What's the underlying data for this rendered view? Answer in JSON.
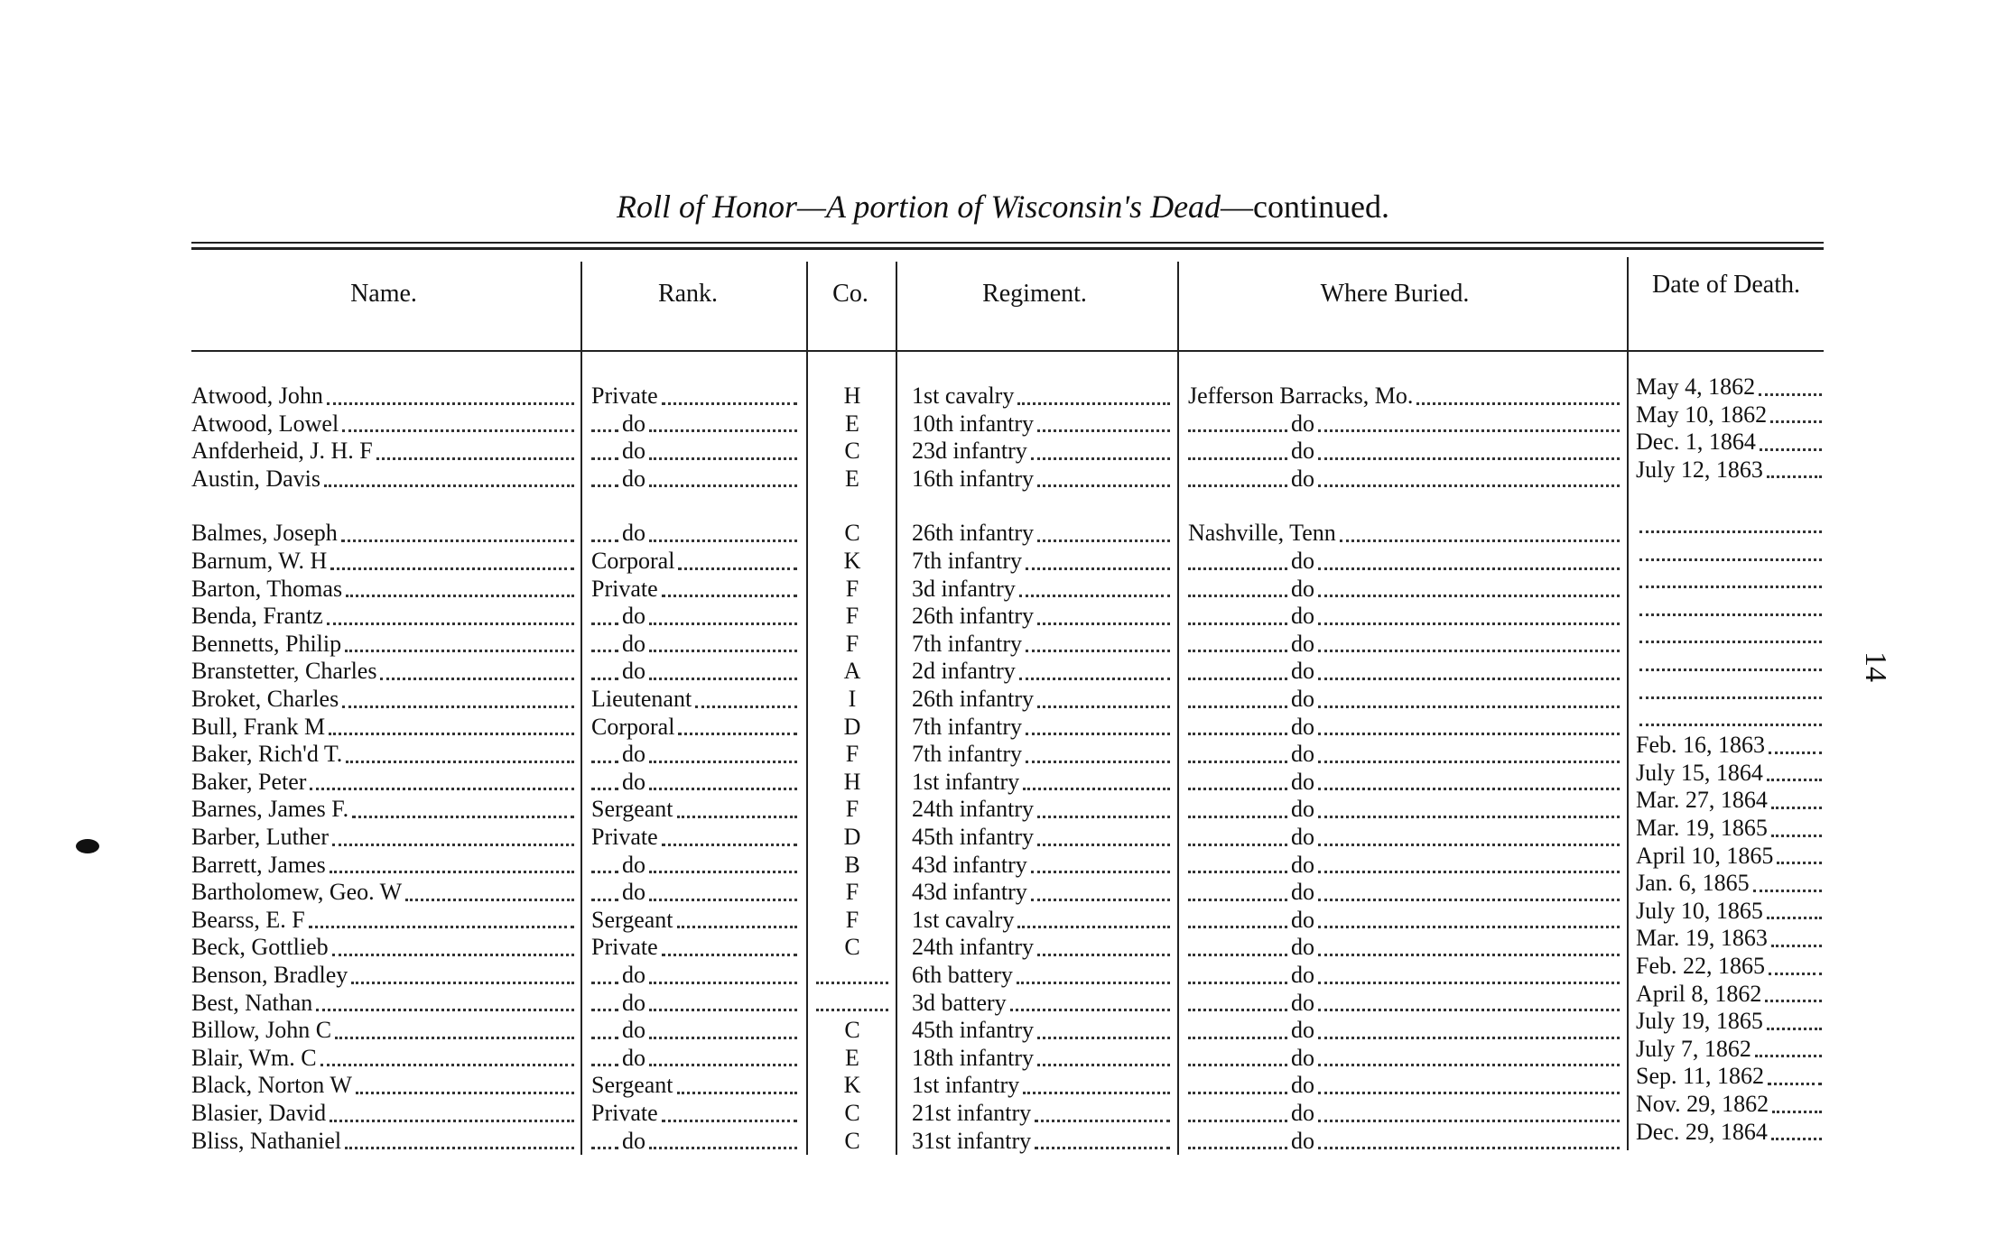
{
  "page": {
    "title": {
      "main": "Roll of Honor—A portion of Wisconsin's Dead",
      "suffix": "—continued."
    },
    "page_number": "14",
    "table": {
      "headers": [
        "Name.",
        "Rank.",
        "Co.",
        "Regiment.",
        "Where Buried.",
        "Date of Death."
      ],
      "rows": [
        [
          "Atwood, John",
          "Private",
          "H",
          "1st cavalry",
          "Jefferson Barracks, Mo.",
          "May 4, 1862"
        ],
        [
          "Atwood, Lowel",
          "do",
          "E",
          "10th infantry",
          "do",
          "May 10, 1862"
        ],
        [
          "Anfderheid, J. H. F",
          "do",
          "C",
          "23d infantry",
          "do",
          "Dec. 1, 1864"
        ],
        [
          "Austin, Davis",
          "do",
          "E",
          "16th infantry",
          "do",
          "July 12, 1863"
        ],
        [
          "Balmes, Joseph",
          "do",
          "C",
          "26th infantry",
          "Nashville, Tenn",
          null
        ],
        [
          "Barnum, W. H",
          "Corporal",
          "K",
          "7th infantry",
          "do",
          null
        ],
        [
          "Barton, Thomas",
          "Private",
          "F",
          "3d infantry",
          "do",
          null
        ],
        [
          "Benda, Frantz",
          "do",
          "F",
          "26th infantry",
          "do",
          null
        ],
        [
          "Bennetts, Philip",
          "do",
          "F",
          "7th infantry",
          "do",
          null
        ],
        [
          "Branstetter, Charles",
          "do",
          "A",
          "2d infantry",
          "do",
          null
        ],
        [
          "Broket, Charles",
          "Lieutenant",
          "I",
          "26th infantry",
          "do",
          null
        ],
        [
          "Bull, Frank M",
          "Corporal",
          "D",
          "7th infantry",
          "do",
          null
        ],
        [
          "Baker, Rich'd T.",
          "do",
          "F",
          "7th infantry",
          "do",
          "Feb. 16, 1863"
        ],
        [
          "Baker, Peter",
          "do",
          "H",
          "1st infantry",
          "do",
          "July 15, 1864"
        ],
        [
          "Barnes, James F.",
          "Sergeant",
          "F",
          "24th infantry",
          "do",
          "Mar. 27, 1864"
        ],
        [
          "Barber, Luther",
          "Private",
          "D",
          "45th infantry",
          "do",
          "Mar. 19, 1865"
        ],
        [
          "Barrett, James",
          "do",
          "B",
          "43d infantry",
          "do",
          "April 10, 1865"
        ],
        [
          "Bartholomew, Geo. W",
          "do",
          "F",
          "43d infantry",
          "do",
          "Jan. 6, 1865"
        ],
        [
          "Bearss, E. F",
          "Sergeant",
          "F",
          "1st cavalry",
          "do",
          "July 10, 1865"
        ],
        [
          "Beck, Gottlieb",
          "Private",
          "C",
          "24th infantry",
          "do",
          "Mar. 19, 1863"
        ],
        [
          "Benson, Bradley",
          "do",
          null,
          "6th battery",
          "do",
          "Feb. 22, 1865"
        ],
        [
          "Best, Nathan",
          "do",
          null,
          "3d battery",
          "do",
          "April 8, 1862"
        ],
        [
          "Billow, John C",
          "do",
          "C",
          "45th infantry",
          "do",
          "July 19, 1865"
        ],
        [
          "Blair, Wm. C",
          "do",
          "E",
          "18th infantry",
          "do",
          "July 7, 1862"
        ],
        [
          "Black, Norton W",
          "Sergeant",
          "K",
          "1st infantry",
          "do",
          "Sep. 11, 1862"
        ],
        [
          "Blasier, David",
          "Private",
          "C",
          "21st infantry",
          "do",
          "Nov. 29, 1862"
        ],
        [
          "Bliss, Nathaniel",
          "do",
          "C",
          "31st infantry",
          "do",
          "Dec. 29, 1864"
        ]
      ]
    }
  }
}
